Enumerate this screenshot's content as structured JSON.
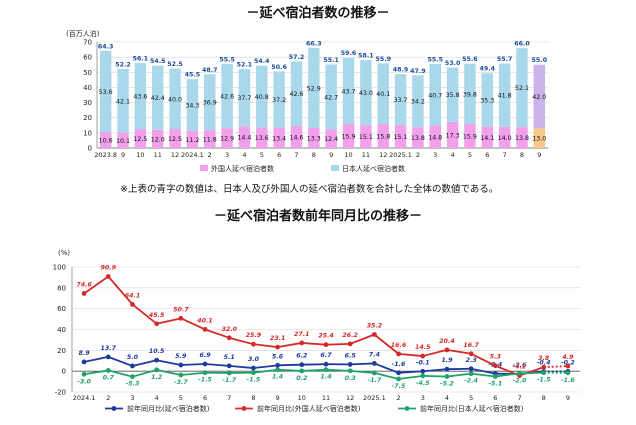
{
  "titles": {
    "top": "－延べ宿泊者数の推移－",
    "bottom": "－延べ宿泊者数前年同月比の推移－"
  },
  "note": "※上表の青字の数値は、日本人及び外国人の延べ宿泊者数を合計した全体の数値である。",
  "colors": {
    "foreign": "#f2a0ec",
    "japanese": "#a8d8ea",
    "foreign_prelim": "#f7c88a",
    "japanese_prelim": "#c8b4e8",
    "total_label": "#1a4e9c",
    "line_total": "#1f3a9e",
    "line_foreign": "#d42a2a",
    "line_japanese": "#20a36a"
  },
  "chart_data": [
    {
      "type": "bar",
      "stacked": true,
      "ylabel": "(百万人泊)",
      "ylim": [
        0,
        70
      ],
      "yticks": [
        0,
        10,
        20,
        30,
        40,
        50,
        60,
        70
      ],
      "categories": [
        "2023.8",
        "9",
        "10",
        "11",
        "12",
        "2024.1",
        "2",
        "3",
        "4",
        "5",
        "6",
        "7",
        "8",
        "9",
        "10",
        "11",
        "12",
        "2025.1",
        "2",
        "3",
        "4",
        "5",
        "6",
        "7",
        "8",
        "9"
      ],
      "series": [
        {
          "name": "外国人延べ宿泊者数",
          "values": [
            10.6,
            10.1,
            12.5,
            12.0,
            12.5,
            11.2,
            11.8,
            12.9,
            14.4,
            13.6,
            13.4,
            14.6,
            13.3,
            12.4,
            15.9,
            15.1,
            15.8,
            15.1,
            13.8,
            14.8,
            17.3,
            15.9,
            14.1,
            14.0,
            13.8,
            13.0
          ]
        },
        {
          "name": "日本人延べ宿泊者数",
          "values": [
            53.6,
            42.1,
            43.6,
            42.4,
            40.0,
            34.3,
            36.9,
            42.6,
            37.7,
            40.8,
            37.2,
            42.6,
            52.9,
            42.7,
            43.7,
            43.0,
            40.1,
            33.7,
            34.2,
            40.7,
            35.8,
            39.8,
            35.3,
            41.8,
            52.1,
            42.0
          ]
        }
      ],
      "totals": [
        64.3,
        52.2,
        56.1,
        54.5,
        52.5,
        45.5,
        48.7,
        55.5,
        52.1,
        54.4,
        50.6,
        57.2,
        66.3,
        55.1,
        59.6,
        58.1,
        55.9,
        48.9,
        47.9,
        55.5,
        53.0,
        55.6,
        49.4,
        55.7,
        66.0,
        55.0
      ]
    },
    {
      "type": "line",
      "ylabel": "(%)",
      "ylim": [
        -20,
        100
      ],
      "yticks": [
        -20,
        0,
        20,
        40,
        60,
        80,
        100
      ],
      "categories": [
        "2024.1",
        "2",
        "3",
        "4",
        "5",
        "6",
        "7",
        "8",
        "9",
        "10",
        "11",
        "12",
        "2025.1",
        "2",
        "3",
        "4",
        "5",
        "6",
        "7",
        "8",
        "9"
      ],
      "series": [
        {
          "name": "前年同月比(延べ宿泊者数)",
          "values": [
            8.9,
            13.7,
            5.0,
            10.5,
            5.9,
            6.9,
            5.1,
            3.0,
            5.6,
            6.2,
            6.7,
            6.5,
            7.4,
            -1.6,
            -0.1,
            1.9,
            2.3,
            -2.4,
            -2.6,
            -0.4,
            -0.2
          ]
        },
        {
          "name": "前年同月比(外国人延べ宿泊者数)",
          "values": [
            74.6,
            90.9,
            64.1,
            45.5,
            50.7,
            40.1,
            32.0,
            25.9,
            23.1,
            27.1,
            25.4,
            26.2,
            35.2,
            16.6,
            14.5,
            20.4,
            16.7,
            5.3,
            -4.2,
            3.8,
            4.9
          ]
        },
        {
          "name": "前年同月比(日本人延べ宿泊者数)",
          "values": [
            -3.0,
            0.7,
            -5.3,
            1.2,
            -3.7,
            -1.5,
            -1.7,
            -1.5,
            1.4,
            0.2,
            1.4,
            0.3,
            -1.7,
            -7.5,
            -4.5,
            -5.2,
            -2.4,
            -5.1,
            -2.0,
            -1.5,
            -1.6
          ]
        }
      ],
      "legend": "bottom"
    }
  ]
}
